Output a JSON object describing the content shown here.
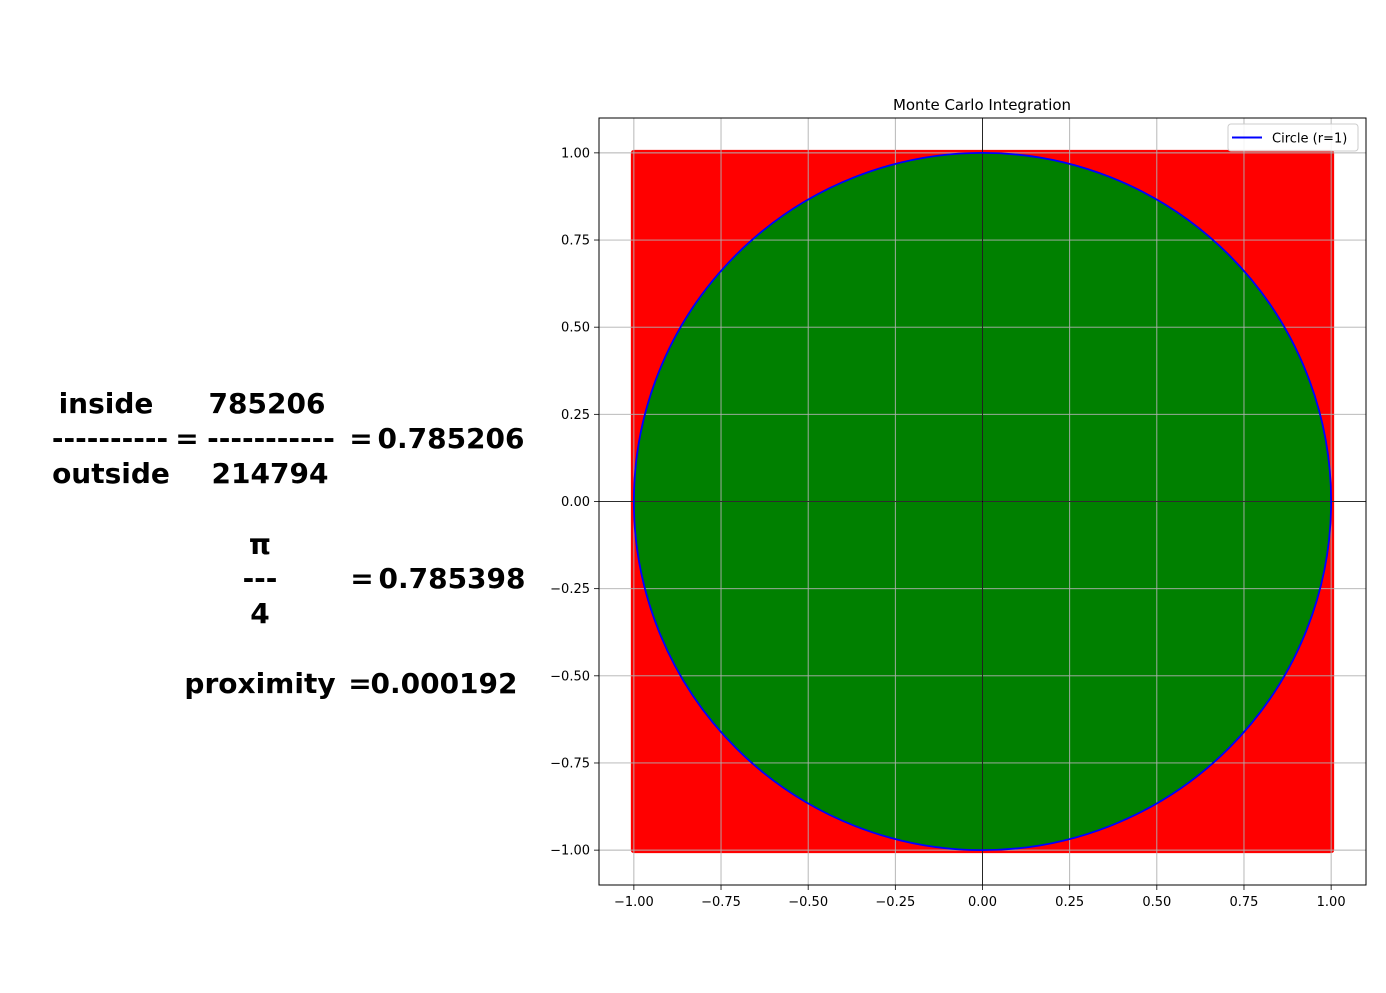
{
  "equation": {
    "inside_label": "inside",
    "outside_label": "outside",
    "frac_line_left": "----------",
    "equals_1": "=",
    "inside_count": "785206",
    "frac_line_mid": "-----------",
    "outside_count": "214794",
    "equals_2": "=",
    "ratio_value": "0.785206",
    "pi_symbol": "π",
    "pi_frac_line": "---",
    "pi_denominator": "4",
    "equals_3": "=",
    "pi_over_4_value": "0.785398",
    "proximity_label": "proximity",
    "equals_4": "=",
    "proximity_value": "0.000192"
  },
  "chart_data": {
    "type": "scatter",
    "title": "Monte Carlo Integration",
    "xlabel": "",
    "ylabel": "",
    "xlim": [
      -1.1,
      1.1
    ],
    "ylim": [
      -1.1,
      1.1
    ],
    "x_ticks": [
      -1.0,
      -0.75,
      -0.5,
      -0.25,
      0.0,
      0.25,
      0.5,
      0.75,
      1.0
    ],
    "y_ticks": [
      -1.0,
      -0.75,
      -0.5,
      -0.25,
      0.0,
      0.25,
      0.5,
      0.75,
      1.0
    ],
    "x_tick_labels": [
      "−1.00",
      "−0.75",
      "−0.50",
      "−0.25",
      "0.00",
      "0.25",
      "0.50",
      "0.75",
      "1.00"
    ],
    "y_tick_labels": [
      "−1.00",
      "−0.75",
      "−0.50",
      "−0.25",
      "0.00",
      "0.25",
      "0.50",
      "0.75",
      "1.00"
    ],
    "grid": true,
    "axis_lines_at_zero": true,
    "points_outside": {
      "count": 214794,
      "color": "#ff0000",
      "x_range": [
        -1.0,
        1.0
      ],
      "y_range": [
        -1.0,
        1.0
      ]
    },
    "points_inside": {
      "count": 785206,
      "color": "#008000"
    },
    "circle": {
      "name": "Circle (r=1)",
      "radius": 1,
      "center": [
        0,
        0
      ],
      "color": "#0000ff"
    },
    "legend": {
      "placement": "top-right",
      "entries": [
        "Circle (r=1)"
      ]
    }
  }
}
